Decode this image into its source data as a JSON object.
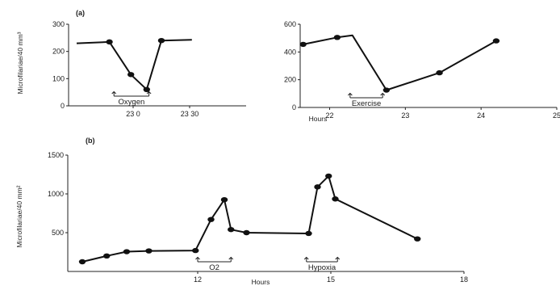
{
  "chart_data": [
    {
      "panel": "(a)",
      "type": "line",
      "ylabel": "Microfilariae/40 mm³",
      "xlabel": "",
      "ylim": [
        0,
        300
      ],
      "xlim": [
        22.5,
        24.0
      ],
      "yticks": [
        0,
        100,
        200,
        300
      ],
      "xticks": [
        {
          "v": 23.0,
          "label": "23 0"
        },
        {
          "v": 23.5,
          "label": "23 30"
        }
      ],
      "points": [
        [
          22.5,
          230
        ],
        [
          22.79,
          235
        ],
        [
          22.98,
          115
        ],
        [
          23.12,
          60
        ],
        [
          23.25,
          240
        ],
        [
          23.52,
          243
        ]
      ],
      "markers": [
        false,
        true,
        true,
        true,
        true,
        false
      ],
      "annotation": {
        "label": "Oxygen",
        "from": 22.83,
        "to": 23.14
      }
    },
    {
      "panel": "",
      "type": "line",
      "ylabel": "",
      "xlabel": "Hours",
      "ylim": [
        0,
        600
      ],
      "xlim": [
        21.6,
        25.0
      ],
      "yticks": [
        0,
        200,
        400,
        600
      ],
      "xticks": [
        {
          "v": 22,
          "label": "22"
        },
        {
          "v": 23,
          "label": "23"
        },
        {
          "v": 24,
          "label": "24"
        },
        {
          "v": 25,
          "label": "25"
        }
      ],
      "points": [
        [
          21.65,
          455
        ],
        [
          22.1,
          505
        ],
        [
          22.3,
          520
        ],
        [
          22.75,
          125
        ],
        [
          23.45,
          250
        ],
        [
          24.2,
          480
        ]
      ],
      "markers": [
        true,
        true,
        false,
        true,
        true,
        true
      ],
      "annotation": {
        "label": "Exercise",
        "from": 22.27,
        "to": 22.7
      }
    },
    {
      "panel": "(b)",
      "type": "line",
      "ylabel": "Microfilariae/40 mm²",
      "xlabel": "Hours",
      "ylim": [
        0,
        1500
      ],
      "xlim": [
        9,
        18
      ],
      "yticks": [
        500,
        1000,
        1500
      ],
      "xticks": [
        {
          "v": 12,
          "label": "12"
        },
        {
          "v": 15,
          "label": "15"
        },
        {
          "v": 18,
          "label": "18"
        }
      ],
      "points": [
        [
          9.4,
          125
        ],
        [
          9.95,
          200
        ],
        [
          10.4,
          255
        ],
        [
          10.9,
          265
        ],
        [
          11.95,
          270
        ],
        [
          12.3,
          670
        ],
        [
          12.6,
          925
        ],
        [
          12.75,
          540
        ],
        [
          13.1,
          500
        ],
        [
          14.5,
          490
        ],
        [
          14.7,
          1090
        ],
        [
          14.95,
          1230
        ],
        [
          15.1,
          935
        ],
        [
          16.95,
          420
        ]
      ],
      "markers": [
        true,
        true,
        true,
        true,
        true,
        true,
        true,
        true,
        true,
        true,
        true,
        true,
        true,
        true
      ],
      "annotations": [
        {
          "label": "O2",
          "from": 12.0,
          "to": 12.75
        },
        {
          "label": "Hypoxia",
          "from": 14.45,
          "to": 15.15
        }
      ]
    }
  ]
}
